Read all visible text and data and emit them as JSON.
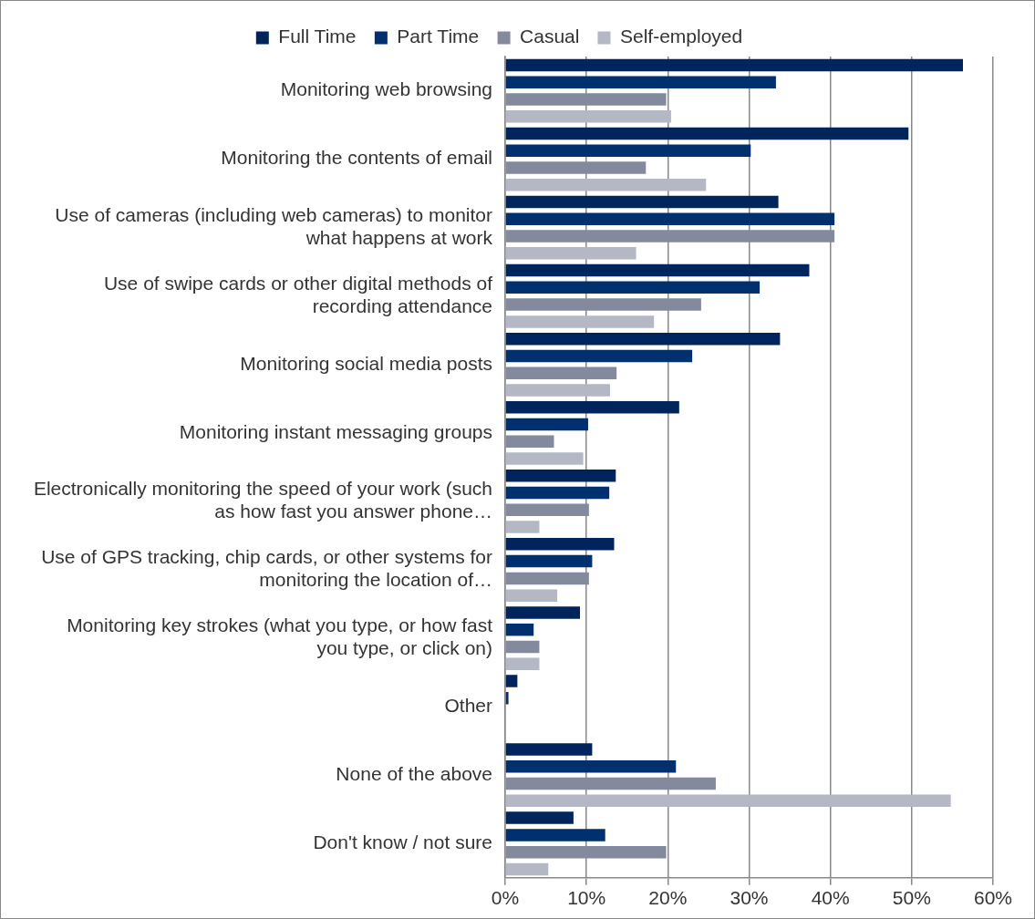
{
  "chart_data": {
    "type": "bar",
    "orientation": "horizontal",
    "categories": [
      "Monitoring web browsing",
      "Monitoring the contents of email",
      "Use of cameras (including web cameras) to monitor what happens at work",
      "Use of swipe cards or other digital methods of recording attendance",
      "Monitoring social media posts",
      "Monitoring instant messaging groups",
      "Electronically monitoring the speed of your work (such as how fast you answer phone…",
      "Use of GPS tracking, chip cards, or other systems for monitoring the location of…",
      "Monitoring key strokes (what you type, or how fast you type, or click on)",
      "Other",
      "None of the above",
      "Don't know / not sure"
    ],
    "series": [
      {
        "name": "Full Time",
        "color": "#00245c",
        "values": [
          56.3,
          49.6,
          33.6,
          37.4,
          33.8,
          21.4,
          13.6,
          13.4,
          9.2,
          1.5,
          10.7,
          8.4
        ]
      },
      {
        "name": "Part Time",
        "color": "#00306e",
        "values": [
          33.3,
          30.2,
          40.5,
          31.3,
          23.0,
          10.2,
          12.8,
          10.7,
          3.5,
          0.4,
          21.0,
          12.3
        ]
      },
      {
        "name": "Casual",
        "color": "#848a9e",
        "values": [
          19.8,
          17.3,
          40.5,
          24.1,
          13.7,
          6.0,
          10.3,
          10.3,
          4.2,
          0,
          25.9,
          19.8
        ]
      },
      {
        "name": "Self-employed",
        "color": "#b4b7c4",
        "values": [
          20.4,
          24.7,
          16.1,
          18.3,
          12.9,
          9.6,
          4.2,
          6.4,
          4.2,
          0,
          54.8,
          5.3
        ]
      }
    ],
    "xlim": [
      0,
      60
    ],
    "xticks": [
      {
        "value": 0,
        "label": "0%"
      },
      {
        "value": 10,
        "label": "10%"
      },
      {
        "value": 20,
        "label": "20%"
      },
      {
        "value": 30,
        "label": "30%"
      },
      {
        "value": 40,
        "label": "40%"
      },
      {
        "value": 50,
        "label": "50%"
      },
      {
        "value": 60,
        "label": "60%"
      }
    ],
    "grid": "x",
    "legend": "top"
  }
}
